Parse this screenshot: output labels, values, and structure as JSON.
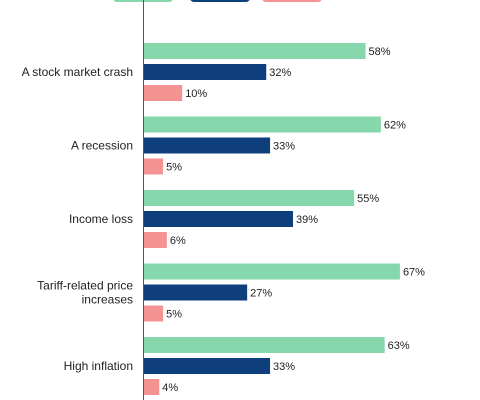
{
  "chart_data": {
    "type": "bar",
    "orientation": "horizontal",
    "categories": [
      [
        "A stock market crash"
      ],
      [
        "A recession"
      ],
      [
        "Income loss"
      ],
      [
        "Tariff-related price",
        "increases"
      ],
      [
        "High inflation"
      ]
    ],
    "series": [
      {
        "color": "#86d7ab",
        "values": [
          58,
          62,
          55,
          67,
          63
        ]
      },
      {
        "color": "#0f3e7c",
        "values": [
          32,
          33,
          39,
          27,
          33
        ]
      },
      {
        "color": "#f59393",
        "values": [
          10,
          5,
          6,
          5,
          4
        ]
      }
    ],
    "value_suffix": "%",
    "xlim": [
      0,
      100
    ],
    "legend_position": "top",
    "grid": false
  }
}
